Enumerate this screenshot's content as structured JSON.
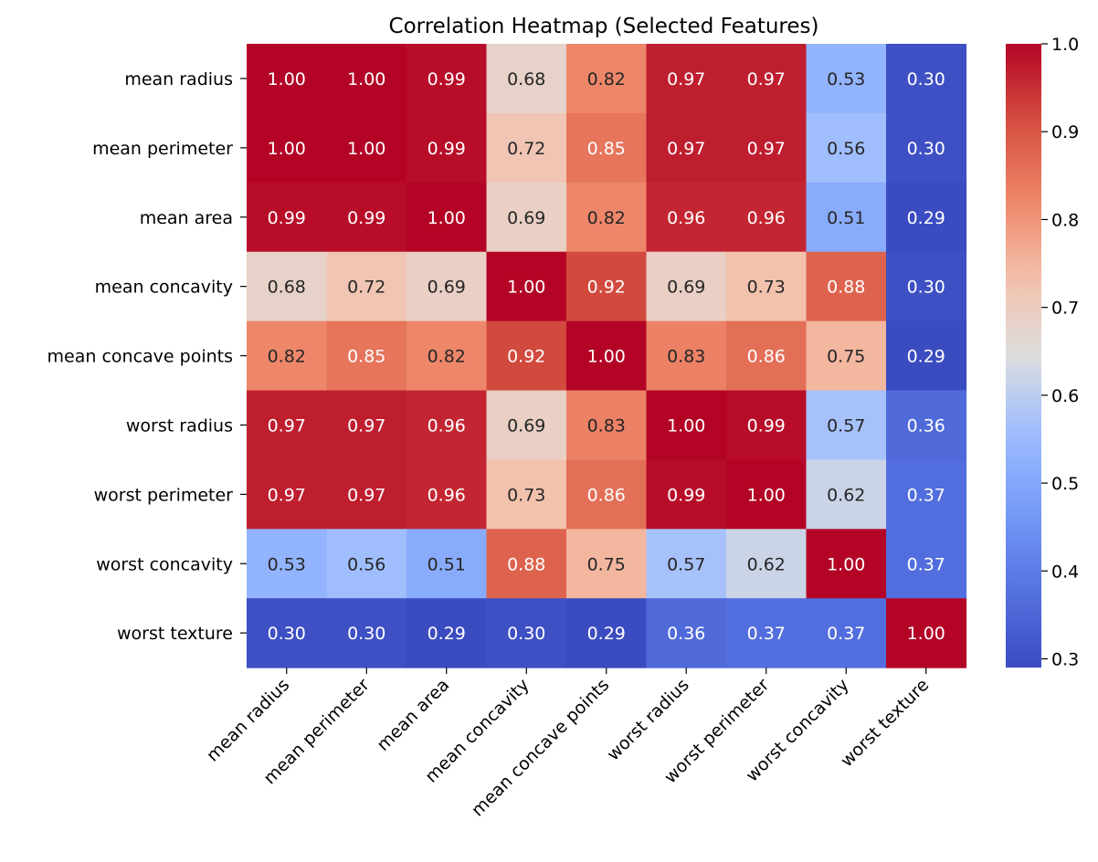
{
  "chart_data": {
    "type": "heatmap",
    "title": "Correlation Heatmap (Selected Features)",
    "xlabel": "",
    "ylabel": "",
    "rows": [
      "mean radius",
      "mean perimeter",
      "mean area",
      "mean concavity",
      "mean concave points",
      "worst radius",
      "worst perimeter",
      "worst concavity",
      "worst texture"
    ],
    "columns": [
      "mean radius",
      "mean perimeter",
      "mean area",
      "mean concavity",
      "mean concave points",
      "worst radius",
      "worst perimeter",
      "worst concavity",
      "worst texture"
    ],
    "values": [
      [
        1.0,
        1.0,
        0.99,
        0.68,
        0.82,
        0.97,
        0.97,
        0.53,
        0.3
      ],
      [
        1.0,
        1.0,
        0.99,
        0.72,
        0.85,
        0.97,
        0.97,
        0.56,
        0.3
      ],
      [
        0.99,
        0.99,
        1.0,
        0.69,
        0.82,
        0.96,
        0.96,
        0.51,
        0.29
      ],
      [
        0.68,
        0.72,
        0.69,
        1.0,
        0.92,
        0.69,
        0.73,
        0.88,
        0.3
      ],
      [
        0.82,
        0.85,
        0.82,
        0.92,
        1.0,
        0.83,
        0.86,
        0.75,
        0.29
      ],
      [
        0.97,
        0.97,
        0.96,
        0.69,
        0.83,
        1.0,
        0.99,
        0.57,
        0.36
      ],
      [
        0.97,
        0.97,
        0.96,
        0.73,
        0.86,
        0.99,
        1.0,
        0.62,
        0.37
      ],
      [
        0.53,
        0.56,
        0.51,
        0.88,
        0.75,
        0.57,
        0.62,
        1.0,
        0.37
      ],
      [
        0.3,
        0.3,
        0.29,
        0.3,
        0.29,
        0.36,
        0.37,
        0.37,
        1.0
      ]
    ],
    "value_format": "0.00",
    "colormap": "coolwarm",
    "colorbar": {
      "vmin": 0.29,
      "vmax": 1.0,
      "ticks": [
        0.3,
        0.4,
        0.5,
        0.6,
        0.7,
        0.8,
        0.9,
        1.0
      ],
      "tick_labels": [
        "0.3",
        "0.4",
        "0.5",
        "0.6",
        "0.7",
        "0.8",
        "0.9",
        "1.0"
      ]
    },
    "grid": false,
    "legend": "colorbar-right"
  }
}
